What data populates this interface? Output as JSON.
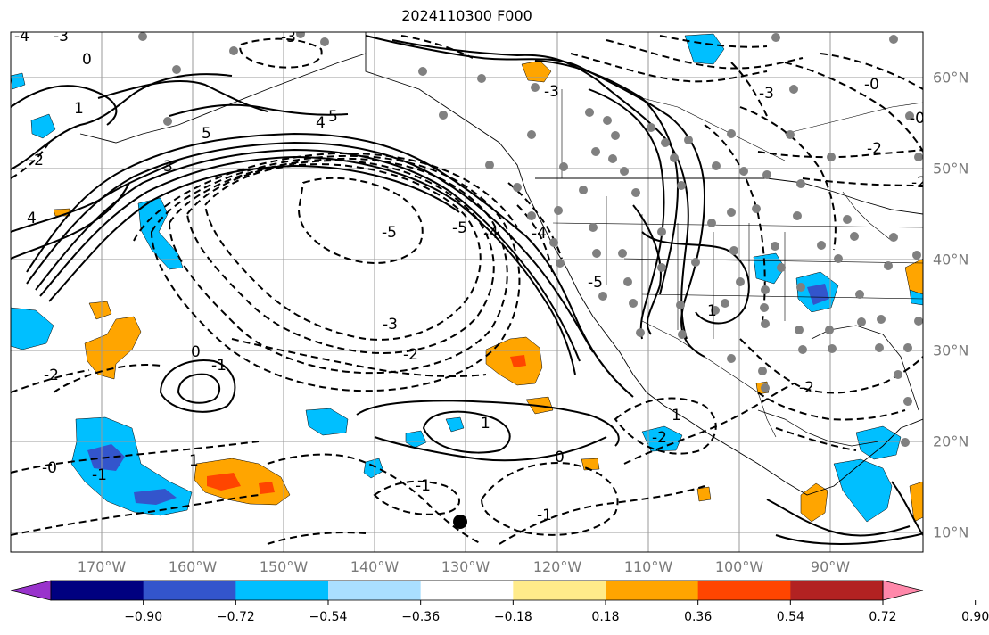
{
  "title": "2024110300 F000",
  "longitude_labels": [
    "170°W",
    "160°W",
    "150°W",
    "140°W",
    "130°W",
    "120°W",
    "110°W",
    "100°W",
    "90°W"
  ],
  "latitude_labels": [
    "60°N",
    "50°N",
    "40°N",
    "30°N",
    "20°N",
    "10°N"
  ],
  "colorbar": {
    "ticks": [
      "−0.90",
      "−0.72",
      "−0.54",
      "−0.36",
      "−0.18",
      "0.18",
      "0.36",
      "0.54",
      "0.72",
      "0.90"
    ],
    "colors": [
      "#9933cc",
      "#000080",
      "#3355cc",
      "#00bfff",
      "#aadfff",
      "#ffffff",
      "#ffeb8a",
      "#ffa500",
      "#ff4500",
      "#b22222",
      "#ff88aa"
    ]
  },
  "contour_labels": [
    "-4",
    "-3",
    "0",
    "-3",
    "1",
    "5",
    "-2",
    "3",
    "4",
    "-5",
    "-5",
    "-4",
    "-3",
    "-2",
    "-1",
    "0",
    "1",
    "-2",
    "-3",
    "-5",
    "-4",
    "-0",
    "-2",
    "-1",
    "-1",
    "-0",
    "0",
    "1",
    "-2",
    "-1",
    "-2",
    "-2",
    "-0",
    "1",
    "5",
    "-3",
    "4",
    "1"
  ],
  "fill_colors": {
    "cyan": "#00bfff",
    "blue": "#3355cc",
    "orange": "#ffa500",
    "red": "#ff4500"
  },
  "marker_colors": {
    "station": "#808080",
    "point": "#000000"
  }
}
